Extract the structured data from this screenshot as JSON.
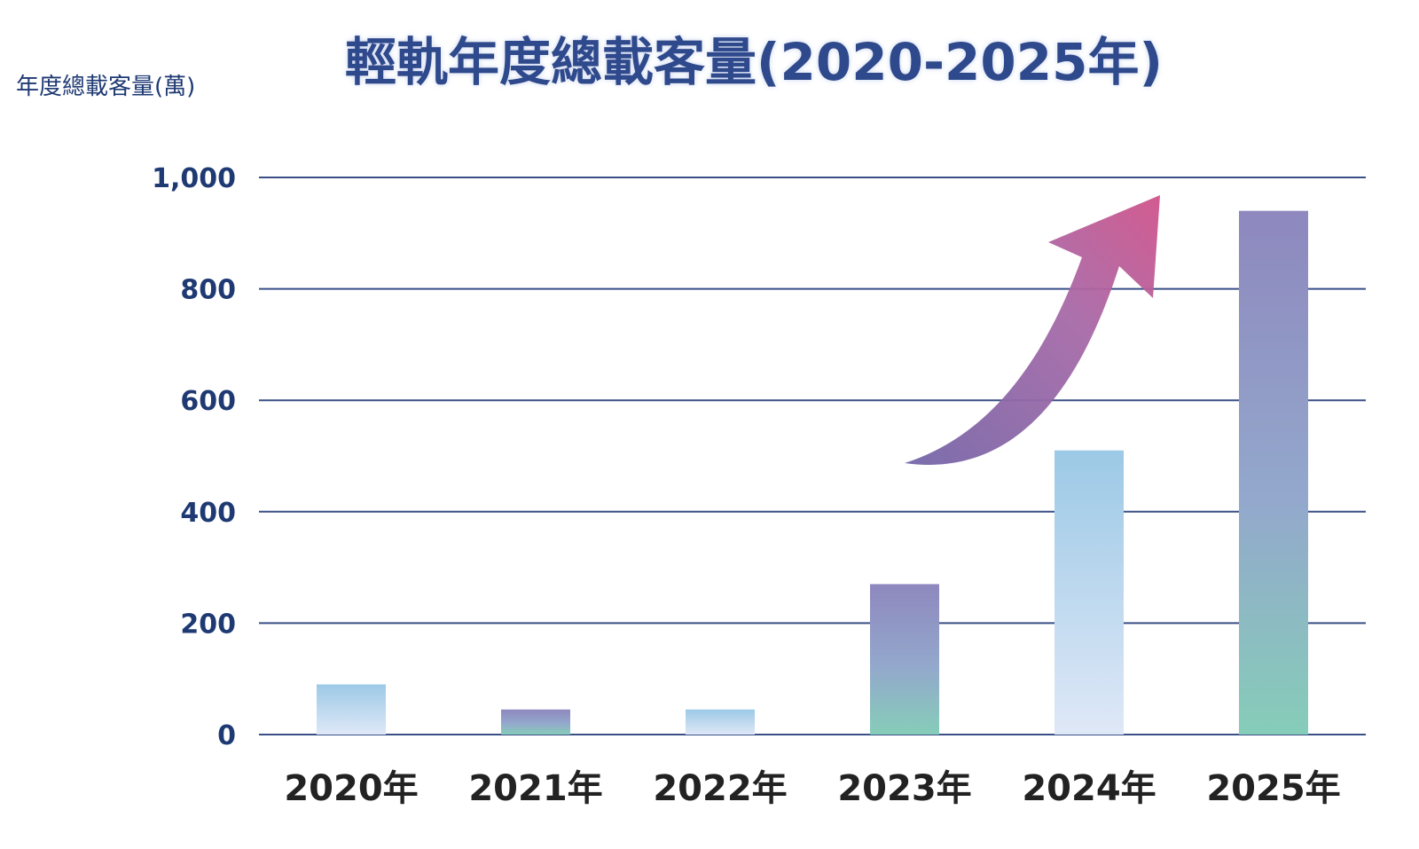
{
  "chart_data": {
    "type": "bar",
    "title": "輕軌年度總載客量(2020-2025年)",
    "ylabel": "年度總載客量(萬)",
    "xlabel": "",
    "categories": [
      "2020年",
      "2021年",
      "2022年",
      "2023年",
      "2024年",
      "2025年"
    ],
    "values": [
      90,
      45,
      45,
      270,
      510,
      940
    ],
    "ylim": [
      0,
      1000
    ],
    "yticks": [
      0,
      200,
      400,
      600,
      800,
      1000
    ],
    "ytick_labels": [
      "0",
      "200",
      "400",
      "600",
      "800",
      "1,000"
    ],
    "grid": true,
    "annotation": "upward-trend-arrow",
    "colors": {
      "title": "#2e4a8c",
      "axis_text": "#1f3a73",
      "gridline": "#3a4f86",
      "category_text": "#222222",
      "bar_light_blue_top": "#9cc9e6",
      "bar_light_blue_bottom": "#dfe8f7",
      "bar_purple_top": "#8e88be",
      "bar_teal_bottom": "#86cdb9",
      "arrow_tip": "#d0538a",
      "arrow_tail": "#7466a8"
    }
  }
}
